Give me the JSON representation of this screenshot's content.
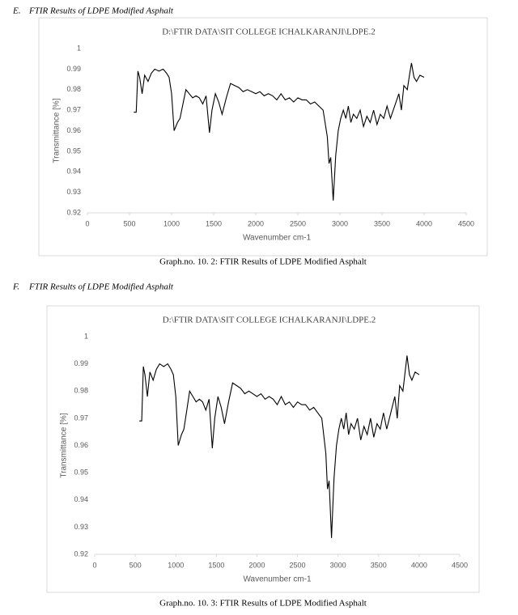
{
  "document": {
    "sections": [
      {
        "label": "E.",
        "heading": "FTIR Results of LDPE Modified Asphalt",
        "caption": "Graph.no. 10. 2: FTIR Results of LDPE Modified Asphalt"
      },
      {
        "label": "F.",
        "heading": "FTIR Results of LDPE Modified Asphalt",
        "caption": "Graph.no. 10. 3: FTIR Results of LDPE Modified Asphalt"
      }
    ]
  },
  "chart_data": [
    {
      "type": "line",
      "title": "D:\\FTIR DATA\\SIT COLLEGE ICHALKARANJI\\LDPE.2",
      "x_label": "Wavenumber cm-1",
      "y_label": "Transmittance [%]",
      "xlim": [
        0,
        4500
      ],
      "xticks": [
        0,
        500,
        1000,
        1500,
        2000,
        2500,
        3000,
        3500,
        4000,
        4500
      ],
      "ylim": [
        0.92,
        1
      ],
      "yticks": [
        0.92,
        0.93,
        0.94,
        0.95,
        0.96,
        0.97,
        0.98,
        0.99,
        1
      ],
      "grid": false,
      "x": [
        550,
        580,
        600,
        620,
        650,
        680,
        720,
        760,
        800,
        850,
        900,
        940,
        970,
        1000,
        1030,
        1070,
        1100,
        1130,
        1170,
        1210,
        1250,
        1290,
        1330,
        1370,
        1410,
        1450,
        1480,
        1520,
        1560,
        1600,
        1650,
        1700,
        1750,
        1800,
        1850,
        1900,
        1950,
        2000,
        2050,
        2100,
        2150,
        2200,
        2250,
        2300,
        2350,
        2400,
        2450,
        2500,
        2550,
        2600,
        2650,
        2700,
        2750,
        2800,
        2850,
        2870,
        2890,
        2920,
        2950,
        2980,
        3010,
        3040,
        3070,
        3100,
        3130,
        3160,
        3200,
        3240,
        3280,
        3320,
        3360,
        3400,
        3440,
        3480,
        3520,
        3560,
        3600,
        3650,
        3700,
        3730,
        3760,
        3800,
        3830,
        3850,
        3880,
        3910,
        3950,
        4000
      ],
      "series": [
        {
          "name": "LDPE.2",
          "color": "#000000",
          "values": [
            0.969,
            0.969,
            0.989,
            0.986,
            0.978,
            0.987,
            0.984,
            0.988,
            0.99,
            0.989,
            0.99,
            0.988,
            0.986,
            0.978,
            0.96,
            0.964,
            0.966,
            0.972,
            0.98,
            0.978,
            0.976,
            0.977,
            0.976,
            0.973,
            0.977,
            0.959,
            0.97,
            0.978,
            0.974,
            0.968,
            0.976,
            0.983,
            0.982,
            0.981,
            0.979,
            0.98,
            0.979,
            0.978,
            0.979,
            0.977,
            0.978,
            0.977,
            0.975,
            0.978,
            0.975,
            0.976,
            0.974,
            0.976,
            0.975,
            0.975,
            0.973,
            0.974,
            0.972,
            0.97,
            0.957,
            0.944,
            0.947,
            0.926,
            0.948,
            0.96,
            0.966,
            0.97,
            0.966,
            0.972,
            0.964,
            0.968,
            0.966,
            0.97,
            0.962,
            0.967,
            0.964,
            0.97,
            0.963,
            0.968,
            0.966,
            0.972,
            0.966,
            0.972,
            0.978,
            0.97,
            0.982,
            0.98,
            0.988,
            0.993,
            0.986,
            0.984,
            0.987,
            0.986
          ]
        }
      ]
    },
    {
      "type": "line",
      "title": "D:\\FTIR DATA\\SIT COLLEGE ICHALKARANJI\\LDPE.2",
      "x_label": "Wavenumber cm-1",
      "y_label": "Transmittance [%]",
      "xlim": [
        0,
        4500
      ],
      "xticks": [
        0,
        500,
        1000,
        1500,
        2000,
        2500,
        3000,
        3500,
        4000,
        4500
      ],
      "ylim": [
        0.92,
        1
      ],
      "yticks": [
        0.92,
        0.93,
        0.94,
        0.95,
        0.96,
        0.97,
        0.98,
        0.99,
        1
      ],
      "grid": false,
      "x": [
        550,
        580,
        600,
        620,
        650,
        680,
        720,
        760,
        800,
        850,
        900,
        940,
        970,
        1000,
        1030,
        1070,
        1100,
        1130,
        1170,
        1210,
        1250,
        1290,
        1330,
        1370,
        1410,
        1450,
        1480,
        1520,
        1560,
        1600,
        1650,
        1700,
        1750,
        1800,
        1850,
        1900,
        1950,
        2000,
        2050,
        2100,
        2150,
        2200,
        2250,
        2300,
        2350,
        2400,
        2450,
        2500,
        2550,
        2600,
        2650,
        2700,
        2750,
        2800,
        2850,
        2870,
        2890,
        2920,
        2950,
        2980,
        3010,
        3040,
        3070,
        3100,
        3130,
        3160,
        3200,
        3240,
        3280,
        3320,
        3360,
        3400,
        3440,
        3480,
        3520,
        3560,
        3600,
        3650,
        3700,
        3730,
        3760,
        3800,
        3830,
        3850,
        3880,
        3910,
        3950,
        4000
      ],
      "series": [
        {
          "name": "LDPE.2",
          "color": "#000000",
          "values": [
            0.969,
            0.969,
            0.989,
            0.986,
            0.978,
            0.987,
            0.984,
            0.988,
            0.99,
            0.989,
            0.99,
            0.988,
            0.986,
            0.978,
            0.96,
            0.964,
            0.966,
            0.972,
            0.98,
            0.978,
            0.976,
            0.977,
            0.976,
            0.973,
            0.977,
            0.959,
            0.97,
            0.978,
            0.974,
            0.968,
            0.976,
            0.983,
            0.982,
            0.981,
            0.979,
            0.98,
            0.979,
            0.978,
            0.979,
            0.977,
            0.978,
            0.977,
            0.975,
            0.978,
            0.975,
            0.976,
            0.974,
            0.976,
            0.975,
            0.975,
            0.973,
            0.974,
            0.972,
            0.97,
            0.957,
            0.944,
            0.947,
            0.926,
            0.948,
            0.96,
            0.966,
            0.97,
            0.966,
            0.972,
            0.964,
            0.968,
            0.966,
            0.97,
            0.962,
            0.967,
            0.964,
            0.97,
            0.963,
            0.968,
            0.966,
            0.972,
            0.966,
            0.972,
            0.978,
            0.97,
            0.982,
            0.98,
            0.988,
            0.993,
            0.986,
            0.984,
            0.987,
            0.986
          ]
        }
      ]
    }
  ]
}
